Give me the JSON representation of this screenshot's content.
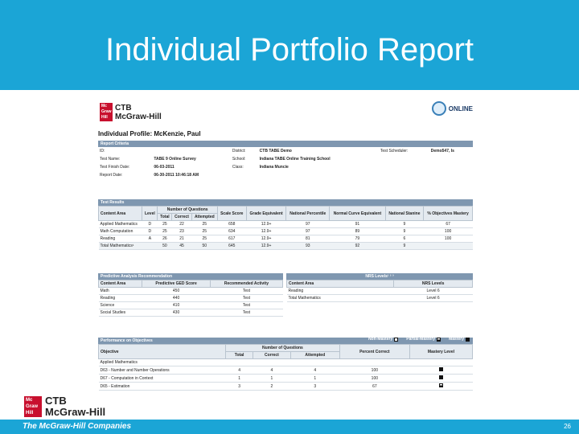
{
  "slide": {
    "title": "Individual Portfolio Report",
    "page_number": "26"
  },
  "brand": {
    "mh_box": "Mc Graw Hill",
    "ctb_line1": "CTB",
    "ctb_line2": "McGraw-Hill",
    "online": "ONLINE",
    "companies": "The McGraw-Hill Companies"
  },
  "report": {
    "profile_title": "Individual Profile: McKenzie, Paul",
    "criteria": {
      "header": "Report Criteria",
      "rows": [
        {
          "l1": "ID:",
          "v1": "",
          "l2": "District:",
          "v2": "CTB TABE Demo",
          "l3": "Test Scheduler:",
          "v3": "Demo547, Is"
        },
        {
          "l1": "Test Name:",
          "v1": "TABE 9 Online Survey",
          "l2": "School:",
          "v2": "Indiana TABE Online Training School",
          "l3": "",
          "v3": ""
        },
        {
          "l1": "Test Finish Date:",
          "v1": "06-03-2011",
          "l2": "Class:",
          "v2": "Indiana Muncie",
          "l3": "",
          "v3": ""
        },
        {
          "l1": "Report Date:",
          "v1": "06-30-2011 10:46:18 AM",
          "l2": "",
          "v2": "",
          "l3": "",
          "v3": ""
        }
      ]
    },
    "results": {
      "header": "Test Results",
      "col_content": "Content Area",
      "col_level": "Level",
      "col_numq": "Number of Questions",
      "col_total": "Total",
      "col_correct": "Correct",
      "col_attempted": "Attempted",
      "col_scale": "Scale Score",
      "col_grade": "Grade Equivalent",
      "col_pct": "National Percentile",
      "col_nce": "Normal Curve Equivalent",
      "col_stanine": "National Stanine",
      "col_mastery": "% Objectives Mastery",
      "rows": [
        {
          "area": "Applied Mathematics",
          "level": "D",
          "total": "25",
          "correct": "22",
          "attempted": "25",
          "scale": "658",
          "grade": "12.9+",
          "pct": "97",
          "nce": "91",
          "stanine": "9",
          "mastery": "67"
        },
        {
          "area": "Math Computation",
          "level": "D",
          "total": "25",
          "correct": "23",
          "attempted": "25",
          "scale": "634",
          "grade": "12.9+",
          "pct": "97",
          "nce": "89",
          "stanine": "9",
          "mastery": "100"
        },
        {
          "area": "Reading",
          "level": "A",
          "total": "26",
          "correct": "21",
          "attempted": "25",
          "scale": "617",
          "grade": "12.9+",
          "pct": "81",
          "nce": "79",
          "stanine": "6",
          "mastery": "100"
        },
        {
          "area": "Total Mathematics¹",
          "level": "",
          "total": "50",
          "correct": "45",
          "attempted": "50",
          "scale": "645",
          "grade": "12.9+",
          "pct": "93",
          "nce": "92",
          "stanine": "9",
          "mastery": ""
        }
      ]
    },
    "predictive": {
      "header": "Predictive Analysis Recommendation",
      "col_area": "Content Area",
      "col_score": "Predictive GED Score",
      "col_activity": "Recommended Activity",
      "rows": [
        {
          "area": "Math",
          "score": "450",
          "activity": "Test"
        },
        {
          "area": "Reading",
          "score": "440",
          "activity": "Test"
        },
        {
          "area": "Science",
          "score": "410",
          "activity": "Test"
        },
        {
          "area": "Social Studies",
          "score": "430",
          "activity": "Test"
        }
      ]
    },
    "nrs": {
      "header": "NRS Levels¹ ² ³",
      "col_area": "Content Area",
      "col_levels": "NRS Levels",
      "rows": [
        {
          "area": "Reading",
          "level": "Level 6"
        },
        {
          "area": "Total Mathematics",
          "level": "Level 6"
        }
      ]
    },
    "objectives": {
      "header": "Performance on Objectives",
      "legend_non": "Non-Mastery",
      "legend_partial": "Partial-Mastery",
      "legend_mastery": "Mastery",
      "col_objective": "Objective",
      "col_numq": "Number of Questions",
      "col_total": "Total",
      "col_correct": "Correct",
      "col_attempted": "Attempted",
      "col_percent": "Percent Correct",
      "col_level": "Mastery Level",
      "group": "Applied Mathematics",
      "rows": [
        {
          "objective": "D63 - Number and Number Operations",
          "total": "4",
          "correct": "4",
          "attempted": "4",
          "percent": "100",
          "level": "mastery"
        },
        {
          "objective": "D67 - Computation in Context",
          "total": "1",
          "correct": "1",
          "attempted": "1",
          "percent": "100",
          "level": "mastery"
        },
        {
          "objective": "D65 - Estimation",
          "total": "3",
          "correct": "2",
          "attempted": "3",
          "percent": "67",
          "level": "partial"
        }
      ]
    }
  }
}
